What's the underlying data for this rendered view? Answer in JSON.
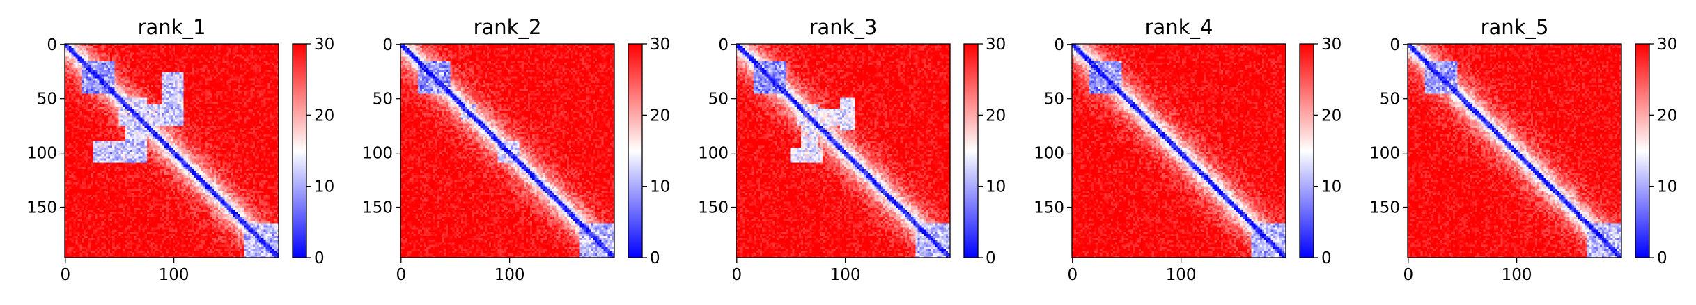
{
  "chart_data": [
    {
      "type": "heatmap",
      "title": "rank_1",
      "xlabel": "",
      "ylabel": "",
      "matrix_size": 197,
      "x_ticks": [
        0,
        100
      ],
      "y_ticks": [
        0,
        50,
        100,
        150
      ],
      "colorbar": {
        "min": 0,
        "max": 30,
        "ticks": [
          0,
          10,
          20,
          30
        ],
        "colormap": "bwr"
      },
      "contact_blocks": [
        {
          "x": [
            15,
            45
          ],
          "y": [
            15,
            45
          ],
          "level": 6
        },
        {
          "x": [
            50,
            110
          ],
          "y": [
            55,
            75
          ],
          "level": 10
        },
        {
          "x": [
            55,
            75
          ],
          "y": [
            50,
            110
          ],
          "level": 10
        },
        {
          "x": [
            25,
            75
          ],
          "y": [
            90,
            110
          ],
          "level": 9
        },
        {
          "x": [
            90,
            110
          ],
          "y": [
            25,
            75
          ],
          "level": 9
        },
        {
          "x": [
            165,
            197
          ],
          "y": [
            165,
            197
          ],
          "level": 8
        }
      ]
    },
    {
      "type": "heatmap",
      "title": "rank_2",
      "xlabel": "",
      "ylabel": "",
      "matrix_size": 197,
      "x_ticks": [
        0,
        100
      ],
      "y_ticks": [
        0,
        50,
        100,
        150
      ],
      "colorbar": {
        "min": 0,
        "max": 30,
        "ticks": [
          0,
          10,
          20,
          30
        ],
        "colormap": "bwr"
      },
      "contact_blocks": [
        {
          "x": [
            15,
            45
          ],
          "y": [
            15,
            45
          ],
          "level": 6
        },
        {
          "x": [
            55,
            70
          ],
          "y": [
            55,
            70
          ],
          "level": 10
        },
        {
          "x": [
            90,
            110
          ],
          "y": [
            90,
            110
          ],
          "level": 10
        },
        {
          "x": [
            165,
            197
          ],
          "y": [
            165,
            197
          ],
          "level": 8
        }
      ]
    },
    {
      "type": "heatmap",
      "title": "rank_3",
      "xlabel": "",
      "ylabel": "",
      "matrix_size": 197,
      "x_ticks": [
        0,
        100
      ],
      "y_ticks": [
        0,
        50,
        100,
        150
      ],
      "colorbar": {
        "min": 0,
        "max": 30,
        "ticks": [
          0,
          10,
          20,
          30
        ],
        "colormap": "bwr"
      },
      "contact_blocks": [
        {
          "x": [
            15,
            45
          ],
          "y": [
            15,
            45
          ],
          "level": 6
        },
        {
          "x": [
            55,
            110
          ],
          "y": [
            60,
            75
          ],
          "level": 11
        },
        {
          "x": [
            60,
            75
          ],
          "y": [
            55,
            110
          ],
          "level": 11
        },
        {
          "x": [
            50,
            80
          ],
          "y": [
            95,
            110
          ],
          "level": 11
        },
        {
          "x": [
            95,
            110
          ],
          "y": [
            50,
            80
          ],
          "level": 11
        },
        {
          "x": [
            165,
            197
          ],
          "y": [
            165,
            197
          ],
          "level": 8
        }
      ]
    },
    {
      "type": "heatmap",
      "title": "rank_4",
      "xlabel": "",
      "ylabel": "",
      "matrix_size": 197,
      "x_ticks": [
        0,
        100
      ],
      "y_ticks": [
        0,
        50,
        100,
        150
      ],
      "colorbar": {
        "min": 0,
        "max": 30,
        "ticks": [
          0,
          10,
          20,
          30
        ],
        "colormap": "bwr"
      },
      "contact_blocks": [
        {
          "x": [
            15,
            45
          ],
          "y": [
            15,
            45
          ],
          "level": 6
        },
        {
          "x": [
            165,
            197
          ],
          "y": [
            165,
            197
          ],
          "level": 8
        }
      ]
    },
    {
      "type": "heatmap",
      "title": "rank_5",
      "xlabel": "",
      "ylabel": "",
      "matrix_size": 197,
      "x_ticks": [
        0,
        100
      ],
      "y_ticks": [
        0,
        50,
        100,
        150
      ],
      "colorbar": {
        "min": 0,
        "max": 30,
        "ticks": [
          0,
          10,
          20,
          30
        ],
        "colormap": "bwr"
      },
      "contact_blocks": [
        {
          "x": [
            15,
            45
          ],
          "y": [
            15,
            45
          ],
          "level": 6
        },
        {
          "x": [
            165,
            197
          ],
          "y": [
            165,
            197
          ],
          "level": 8
        }
      ]
    }
  ]
}
